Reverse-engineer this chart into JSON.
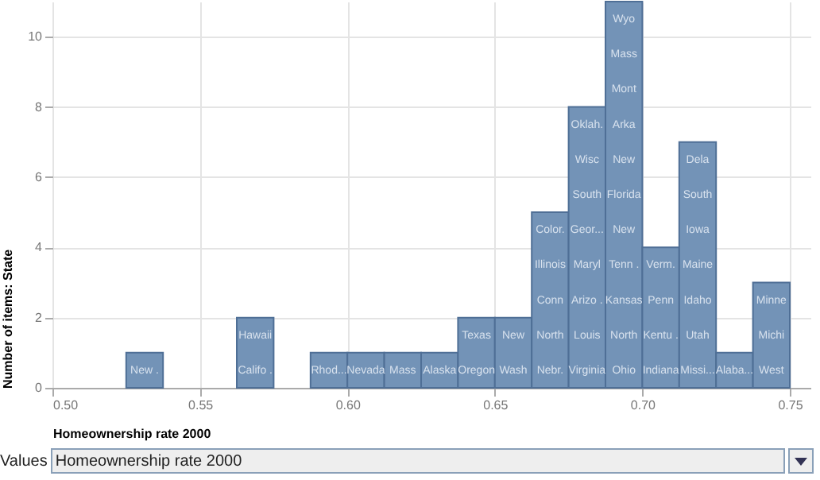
{
  "chart_data": {
    "type": "histogram",
    "xlabel": "Homeownership rate 2000",
    "ylabel": "Number of items: State",
    "color": "#7393b7",
    "bins": [
      0.5,
      0.5125,
      0.525,
      0.5375,
      0.55,
      0.5625,
      0.575,
      0.5875,
      0.6,
      0.6125,
      0.625,
      0.6375,
      0.65,
      0.6625,
      0.675,
      0.6875,
      0.7,
      0.7125,
      0.725,
      0.7375,
      0.75
    ],
    "values": [
      0,
      0,
      1,
      0,
      0,
      2,
      0,
      1,
      1,
      1,
      1,
      2,
      2,
      5,
      8,
      11,
      4,
      7,
      1,
      3
    ],
    "xlim": [
      0.5,
      0.757
    ],
    "ylim": [
      0,
      11
    ],
    "xticks": [
      {
        "value": 0.5,
        "label": "0.50"
      },
      0.55,
      {
        "value": 0.6,
        "label": "0.60"
      },
      0.65,
      {
        "value": 0.7,
        "label": "0.70"
      },
      0.75
    ],
    "yticks": [
      0,
      2,
      4,
      6,
      8,
      10
    ],
    "grid": true,
    "annotations": [
      "New .",
      "Califo .",
      "Hawaii",
      "Rhod...",
      "Nevada",
      "Mass",
      "Alaska",
      "Oregon",
      "Texas",
      "Wash",
      "New",
      "Nebr.",
      "North",
      "Conn",
      "Illinois",
      "Color.",
      "Virginia",
      "Louis",
      "Arizo .",
      "Maryl",
      "Geor...",
      "South",
      "Wisc",
      "Oklah.",
      "Ohio",
      "North",
      "Kansas",
      "Tenn .",
      "New",
      "Florida",
      "New",
      "Arka",
      "Mont",
      "Mass",
      "Wyo",
      "Indiana",
      "Kentu .",
      "Penn",
      "Verm.",
      "Missi...",
      "Utah",
      "Idaho",
      "Maine",
      "Iowa",
      "South",
      "Dela",
      "Alaba...",
      "West",
      "Michi",
      "Minne",
      "Values",
      "Homeownership rate 2000"
    ]
  }
}
